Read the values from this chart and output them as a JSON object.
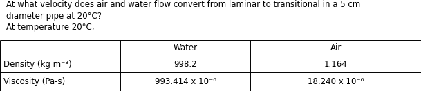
{
  "title_line1": "At what velocity does air and water flow convert from laminar to transitional in a 5 cm",
  "title_line2": "diameter pipe at 20°C?",
  "title_line3": "At temperature 20°C,",
  "col_headers": [
    "",
    "Water",
    "Air"
  ],
  "row1_label": "Density (kg m⁻³)",
  "row2_label": "Viscosity (Pa-s)",
  "water_density": "998.2",
  "air_density": "1.164",
  "water_viscosity": "993.414 x 10⁻⁶",
  "air_viscosity": "18.240 x 10⁻⁶",
  "bg_color": "#ffffff",
  "text_color": "#000000",
  "font_size": 8.5,
  "table_font_size": 8.5,
  "fig_width": 6.09,
  "fig_height": 1.32,
  "dpi": 100
}
